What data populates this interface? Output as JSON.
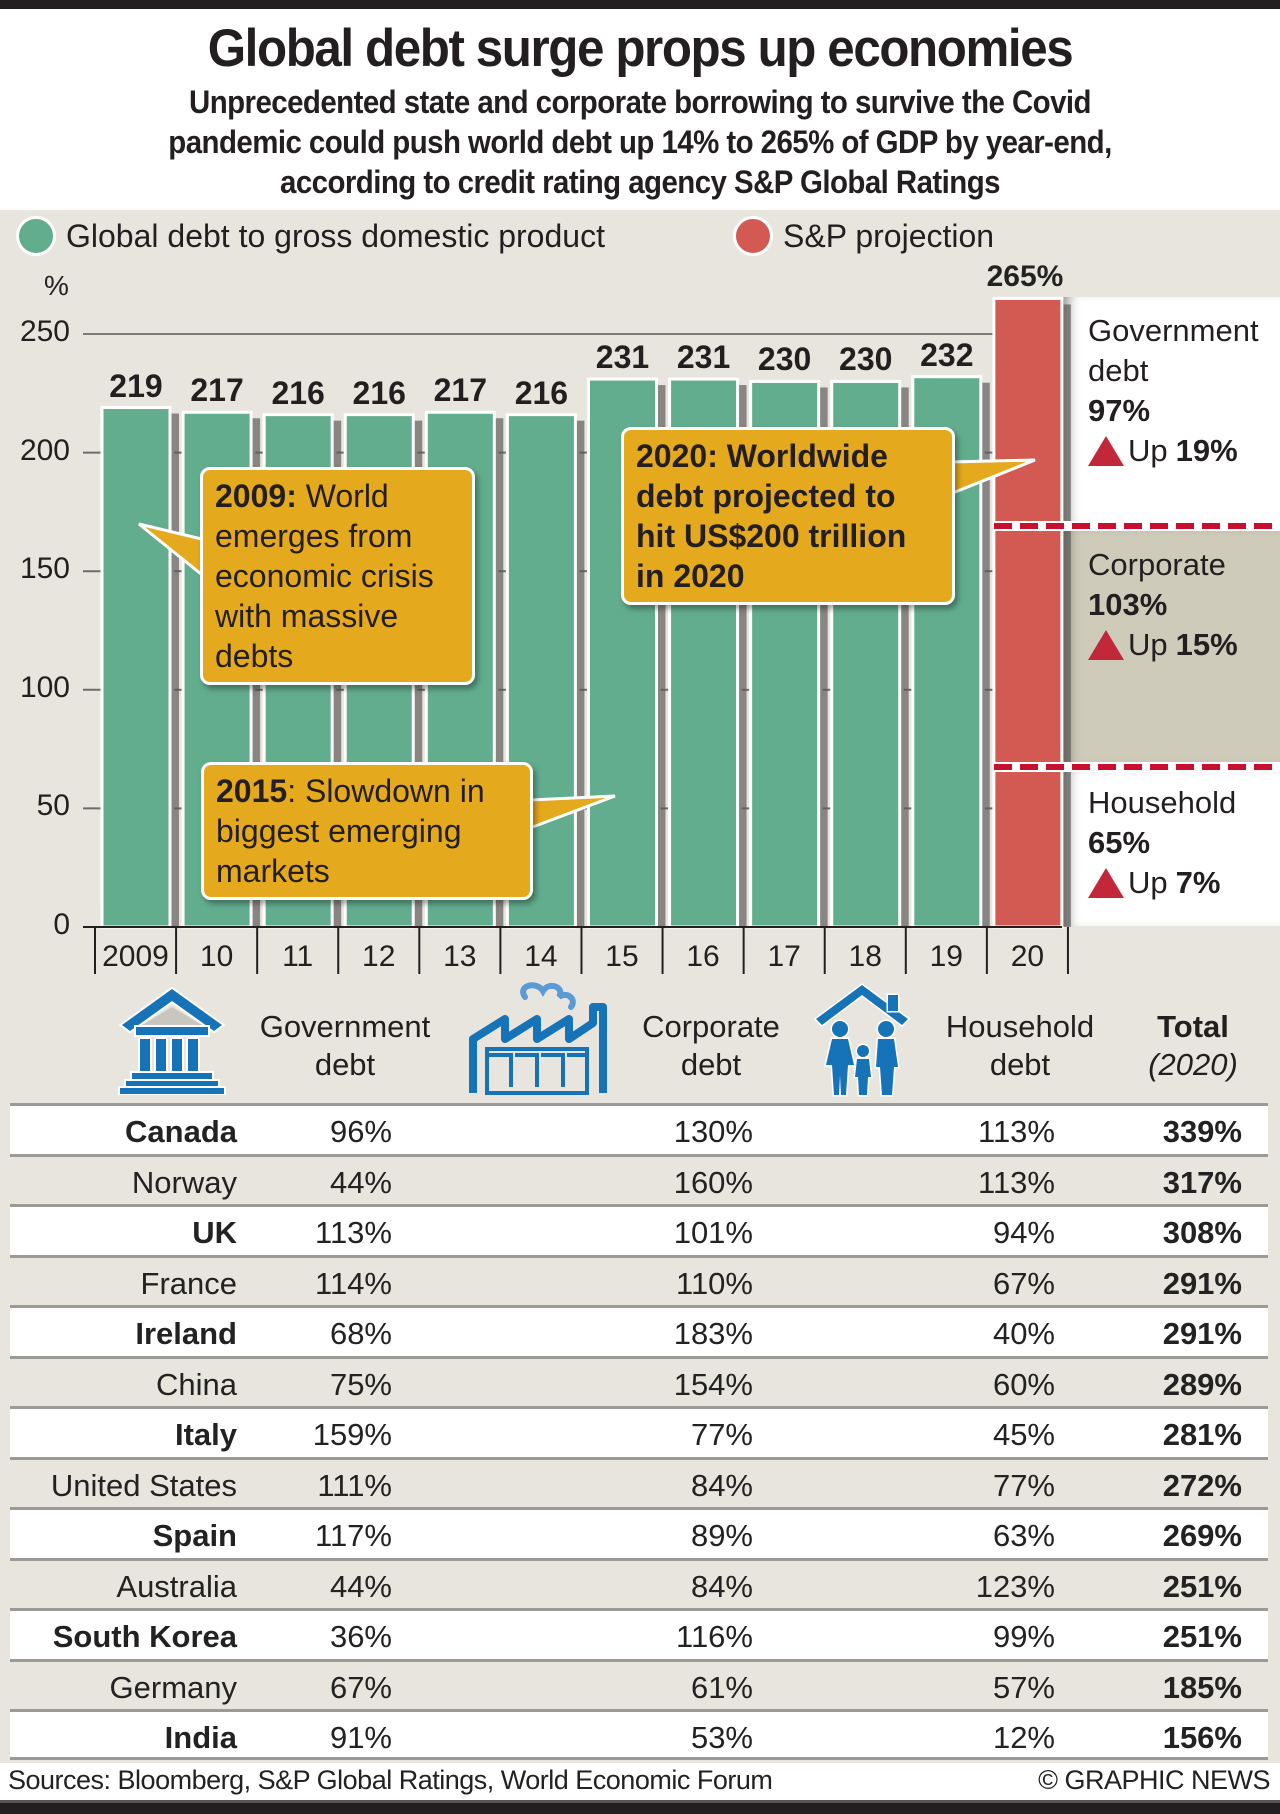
{
  "header": {
    "title": "Global debt surge props up economies",
    "subtitle_lines": [
      "Unprecedented state and corporate borrowing to survive the Covid",
      "pandemic could push world debt up 14% to 265% of GDP by year-end,",
      "according to credit rating agency S&P Global Ratings"
    ]
  },
  "colors": {
    "history": "#63ad8f",
    "projection": "#d35a52",
    "callout": "#e5a91d",
    "dash": "#c8102e",
    "icon_blue": "#1673b8",
    "corporate_panel": "#cfcbbb"
  },
  "chart_data": {
    "type": "bar",
    "title": "Global debt surge props up economies",
    "xlabel": "",
    "ylabel": "%",
    "ylim": [
      0,
      250
    ],
    "yticks": [
      0,
      50,
      100,
      150,
      200,
      250
    ],
    "grid": true,
    "legend_placement": "top-left",
    "categories": [
      "2009",
      "10",
      "11",
      "12",
      "13",
      "14",
      "15",
      "16",
      "17",
      "18",
      "19",
      "20"
    ],
    "series": [
      {
        "name": "Global debt to gross domestic product",
        "values": [
          219,
          217,
          216,
          216,
          217,
          216,
          231,
          231,
          230,
          230,
          232,
          null
        ],
        "labels": [
          "219",
          "217",
          "216",
          "216",
          "217",
          "216",
          "231",
          "231",
          "230",
          "230",
          "232",
          ""
        ]
      },
      {
        "name": "S&P projection",
        "values": [
          null,
          null,
          null,
          null,
          null,
          null,
          null,
          null,
          null,
          null,
          null,
          265
        ],
        "labels": [
          "",
          "",
          "",
          "",
          "",
          "",
          "",
          "",
          "",
          "",
          "",
          "265%"
        ]
      }
    ],
    "projection_breakdown": [
      {
        "name": "Household",
        "label": "Household",
        "value": 65,
        "value_label": "65%",
        "change_label": "Up",
        "change_value": "7%"
      },
      {
        "name": "Corporate",
        "label": "Corporate",
        "value": 103,
        "value_label": "103%",
        "change_label": "Up",
        "change_value": "15%"
      },
      {
        "name": "Government debt",
        "label_lines": [
          "Government",
          "debt"
        ],
        "value": 97,
        "value_label": "97%",
        "change_label": "Up",
        "change_value": "19%"
      }
    ],
    "annotations": [
      {
        "year": "2009",
        "bold": "2009:",
        "text_lines": [
          " World",
          "emerges from",
          "economic crisis",
          "with massive",
          "debts"
        ]
      },
      {
        "year": "2015",
        "bold": "2015",
        "text_lines": [
          ": Slowdown in",
          "biggest emerging",
          "markets"
        ]
      },
      {
        "year": "2020",
        "lines": [
          "2020: Worldwide",
          "debt projected to",
          "hit US$200 trillion",
          "in 2020"
        ]
      }
    ],
    "pct_symbol": "%"
  },
  "table": {
    "headers": {
      "government": [
        "Government",
        "debt"
      ],
      "corporate": [
        "Corporate",
        "debt"
      ],
      "household": [
        "Household",
        "debt"
      ],
      "total": "Total",
      "total_sub": "(2020)"
    },
    "icons": {
      "government": "government-building-icon",
      "corporate": "factory-icon",
      "household": "family-house-icon"
    },
    "rows": [
      {
        "country": "Canada",
        "gov": "96%",
        "corp": "130%",
        "house": "113%",
        "total": "339%",
        "bold": true
      },
      {
        "country": "Norway",
        "gov": "44%",
        "corp": "160%",
        "house": "113%",
        "total": "317%",
        "bold": false
      },
      {
        "country": "UK",
        "gov": "113%",
        "corp": "101%",
        "house": "94%",
        "total": "308%",
        "bold": true
      },
      {
        "country": "France",
        "gov": "114%",
        "corp": "110%",
        "house": "67%",
        "total": "291%",
        "bold": false
      },
      {
        "country": "Ireland",
        "gov": "68%",
        "corp": "183%",
        "house": "40%",
        "total": "291%",
        "bold": true
      },
      {
        "country": "China",
        "gov": "75%",
        "corp": "154%",
        "house": "60%",
        "total": "289%",
        "bold": false
      },
      {
        "country": "Italy",
        "gov": "159%",
        "corp": "77%",
        "house": "45%",
        "total": "281%",
        "bold": true
      },
      {
        "country": "United States",
        "gov": "111%",
        "corp": "84%",
        "house": "77%",
        "total": "272%",
        "bold": false
      },
      {
        "country": "Spain",
        "gov": "117%",
        "corp": "89%",
        "house": "63%",
        "total": "269%",
        "bold": true
      },
      {
        "country": "Australia",
        "gov": "44%",
        "corp": "84%",
        "house": "123%",
        "total": "251%",
        "bold": false
      },
      {
        "country": "South Korea",
        "gov": "36%",
        "corp": "116%",
        "house": "99%",
        "total": "251%",
        "bold": true
      },
      {
        "country": "Germany",
        "gov": "67%",
        "corp": "61%",
        "house": "57%",
        "total": "185%",
        "bold": false
      },
      {
        "country": "India",
        "gov": "91%",
        "corp": "53%",
        "house": "12%",
        "total": "156%",
        "bold": true
      }
    ]
  },
  "footer": {
    "sources": "Sources: Bloomberg, S&P Global Ratings, World Economic Forum",
    "credit": "© GRAPHIC NEWS"
  }
}
